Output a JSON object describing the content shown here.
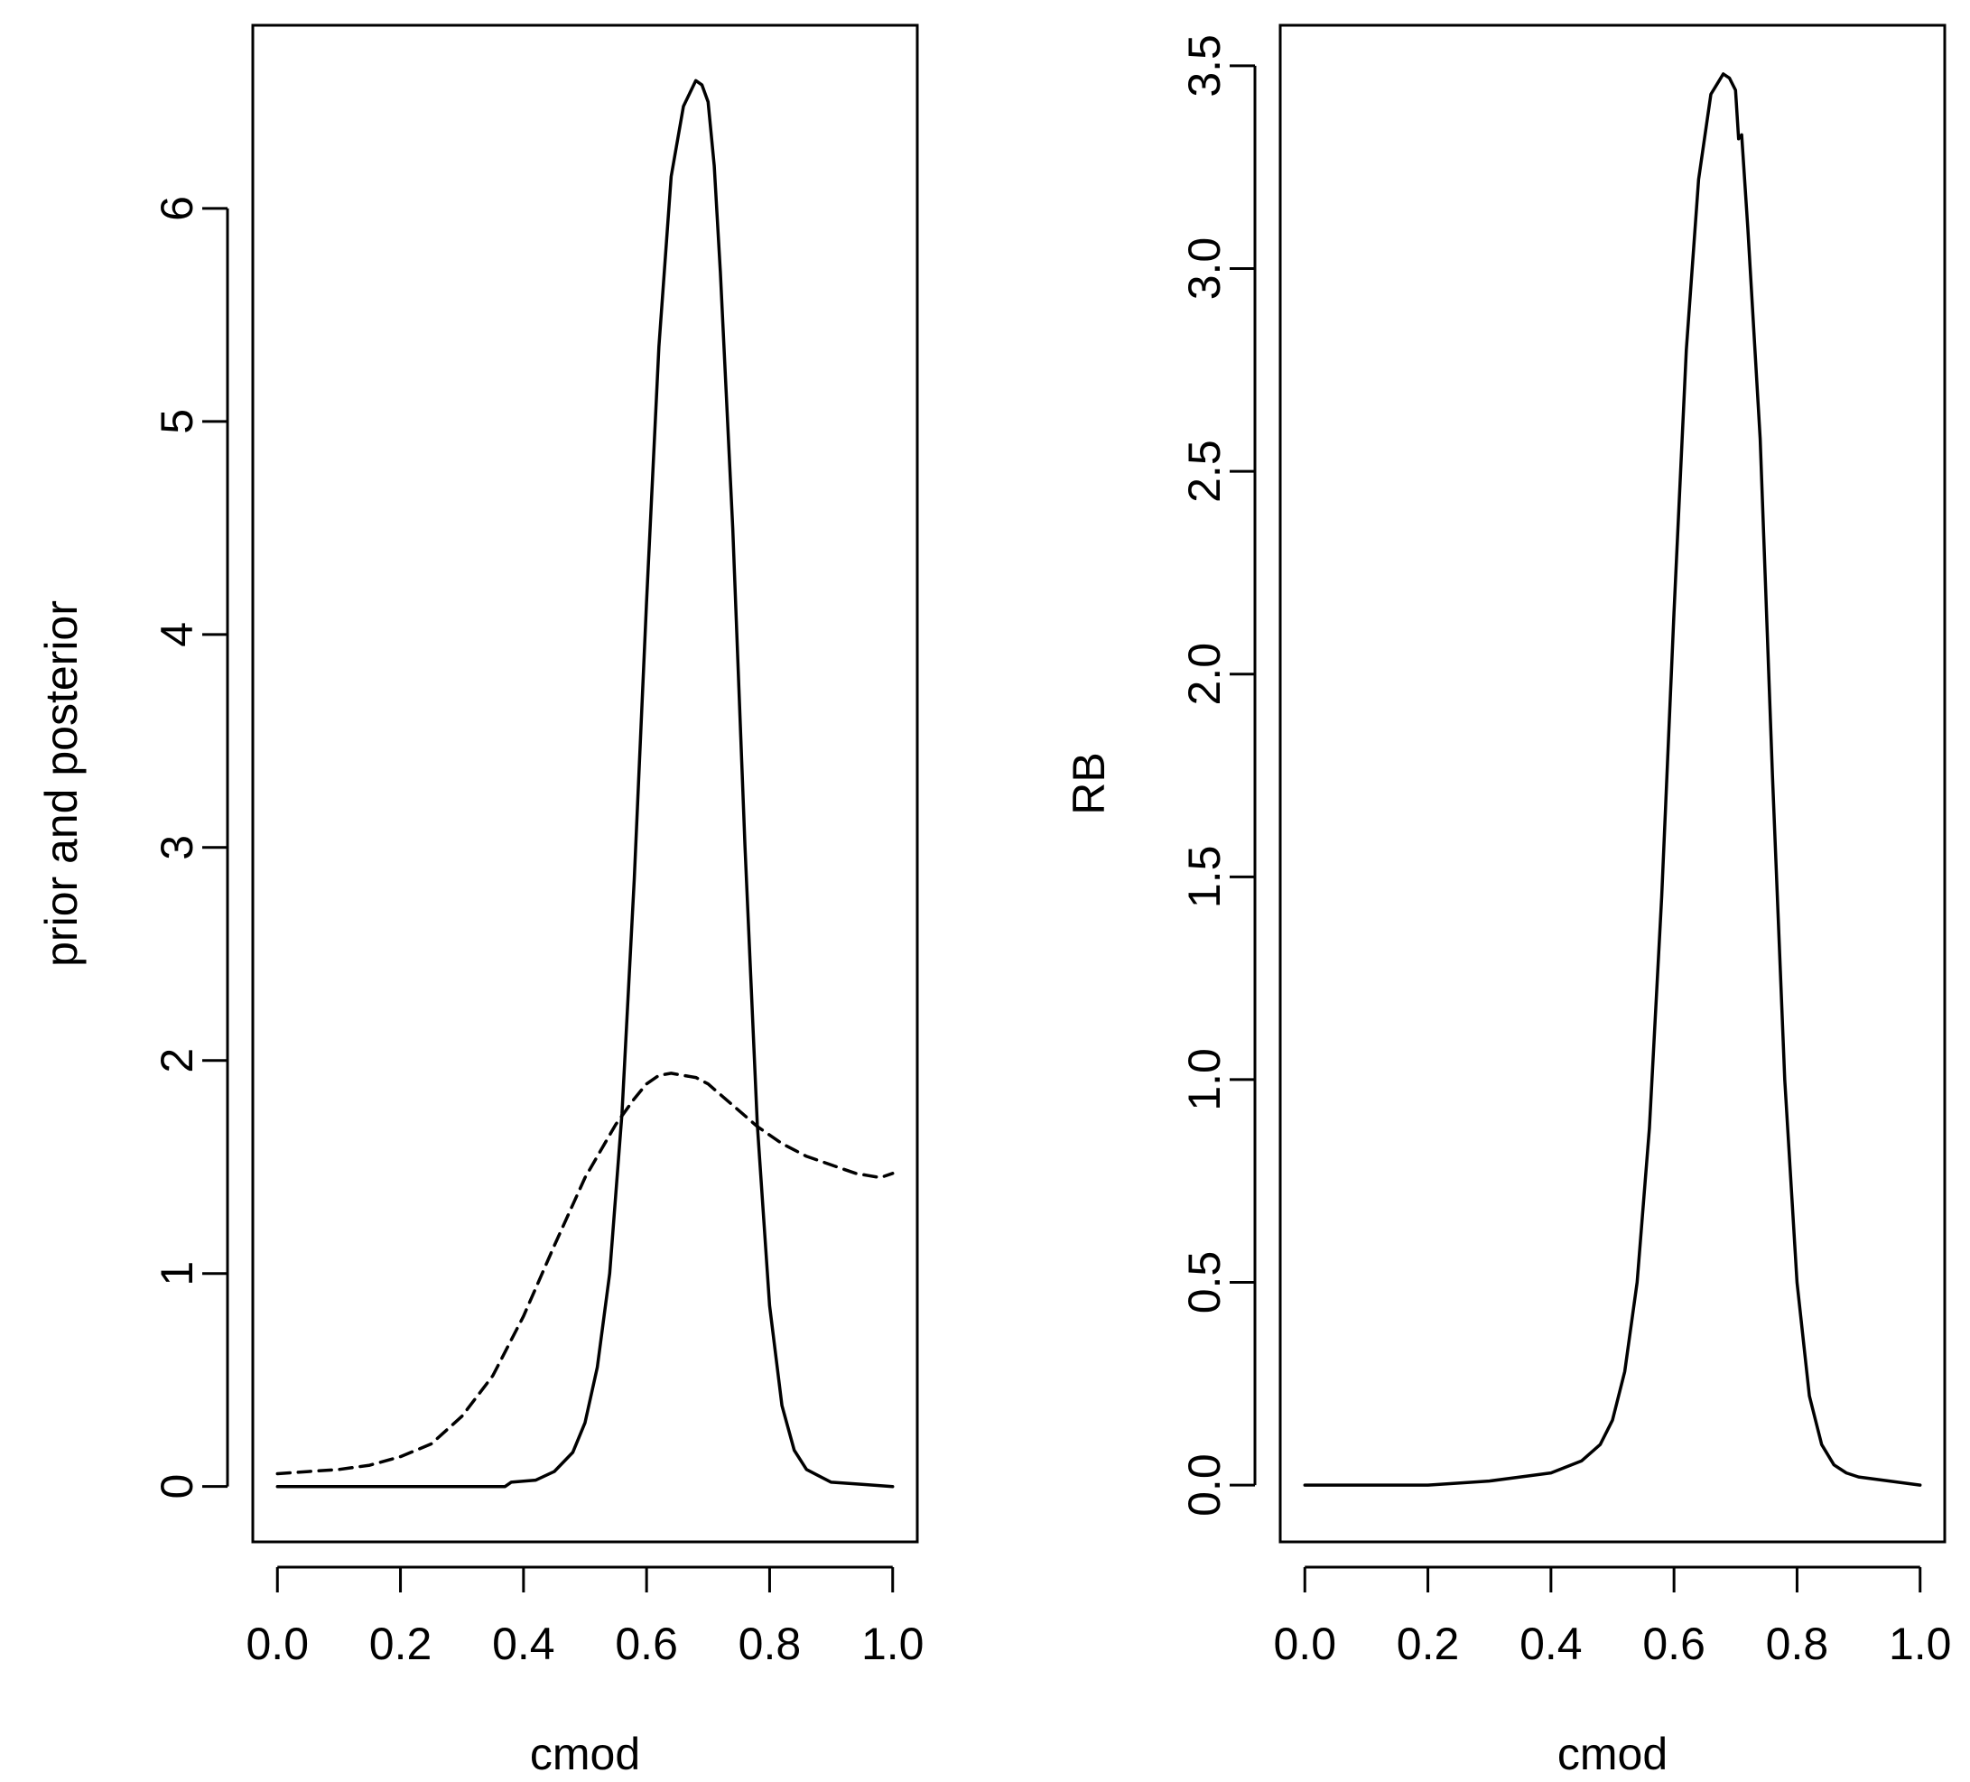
{
  "chart_data": [
    {
      "type": "line",
      "xlabel": "cmod",
      "ylabel": "prior and posterior",
      "xlim": [
        -0.04,
        1.04
      ],
      "ylim": [
        -0.26,
        6.86
      ],
      "xticks": [
        0.0,
        0.2,
        0.4,
        0.6,
        0.8,
        1.0
      ],
      "xtick_labels": [
        "0.0",
        "0.2",
        "0.4",
        "0.6",
        "0.8",
        "1.0"
      ],
      "yticks": [
        0,
        1,
        2,
        3,
        4,
        5,
        6
      ],
      "ytick_labels": [
        "0",
        "1",
        "2",
        "3",
        "4",
        "5",
        "6"
      ],
      "grid": false,
      "series": [
        {
          "line_style": "solid",
          "color": "#000000",
          "x": [
            0.0,
            0.1,
            0.2,
            0.3,
            0.37,
            0.38,
            0.42,
            0.45,
            0.48,
            0.5,
            0.52,
            0.54,
            0.56,
            0.58,
            0.6,
            0.62,
            0.64,
            0.66,
            0.68,
            0.69,
            0.7,
            0.71,
            0.72,
            0.74,
            0.76,
            0.78,
            0.8,
            0.82,
            0.84,
            0.86,
            0.88,
            0.9,
            0.95,
            1.0
          ],
          "y": [
            0.0,
            0.0,
            0.0,
            0.0,
            0.0,
            0.02,
            0.03,
            0.07,
            0.16,
            0.3,
            0.56,
            1.0,
            1.75,
            2.85,
            4.15,
            5.35,
            6.15,
            6.48,
            6.6,
            6.58,
            6.5,
            6.2,
            5.7,
            4.5,
            3.0,
            1.7,
            0.85,
            0.38,
            0.17,
            0.08,
            0.05,
            0.02,
            0.01,
            0.0
          ]
        },
        {
          "line_style": "dashed",
          "color": "#000000",
          "x": [
            0.0,
            0.05,
            0.1,
            0.15,
            0.2,
            0.25,
            0.3,
            0.35,
            0.4,
            0.45,
            0.5,
            0.55,
            0.58,
            0.6,
            0.62,
            0.64,
            0.66,
            0.68,
            0.7,
            0.72,
            0.74,
            0.76,
            0.78,
            0.8,
            0.82,
            0.84,
            0.86,
            0.88,
            0.9,
            0.92,
            0.94,
            0.96,
            0.98,
            1.0
          ],
          "y": [
            0.06,
            0.07,
            0.08,
            0.1,
            0.14,
            0.2,
            0.33,
            0.52,
            0.8,
            1.13,
            1.45,
            1.7,
            1.82,
            1.89,
            1.93,
            1.94,
            1.93,
            1.92,
            1.89,
            1.84,
            1.79,
            1.74,
            1.69,
            1.65,
            1.61,
            1.58,
            1.55,
            1.53,
            1.51,
            1.49,
            1.47,
            1.46,
            1.45,
            1.47
          ]
        }
      ]
    },
    {
      "type": "line",
      "xlabel": "cmod",
      "ylabel": "RB",
      "xlim": [
        -0.04,
        1.04
      ],
      "ylim": [
        -0.14,
        3.6
      ],
      "xticks": [
        0.0,
        0.2,
        0.4,
        0.6,
        0.8,
        1.0
      ],
      "xtick_labels": [
        "0.0",
        "0.2",
        "0.4",
        "0.6",
        "0.8",
        "1.0"
      ],
      "yticks": [
        0.0,
        0.5,
        1.0,
        1.5,
        2.0,
        2.5,
        3.0,
        3.5
      ],
      "ytick_labels": [
        "0.0",
        "0.5",
        "1.0",
        "1.5",
        "2.0",
        "2.5",
        "3.0",
        "3.5"
      ],
      "grid": false,
      "series": [
        {
          "line_style": "solid",
          "color": "#000000",
          "x": [
            0.0,
            0.1,
            0.2,
            0.3,
            0.35,
            0.4,
            0.45,
            0.48,
            0.5,
            0.52,
            0.54,
            0.56,
            0.58,
            0.6,
            0.62,
            0.64,
            0.66,
            0.68,
            0.69,
            0.7,
            0.705,
            0.71,
            0.72,
            0.74,
            0.76,
            0.78,
            0.8,
            0.82,
            0.84,
            0.86,
            0.88,
            0.9,
            0.95,
            1.0
          ],
          "y": [
            0.0,
            0.0,
            0.0,
            0.01,
            0.02,
            0.03,
            0.06,
            0.1,
            0.16,
            0.28,
            0.5,
            0.88,
            1.45,
            2.15,
            2.8,
            3.22,
            3.43,
            3.48,
            3.47,
            3.44,
            3.32,
            3.33,
            3.1,
            2.58,
            1.75,
            1.0,
            0.5,
            0.22,
            0.1,
            0.05,
            0.03,
            0.02,
            0.01,
            0.0
          ]
        }
      ]
    }
  ]
}
